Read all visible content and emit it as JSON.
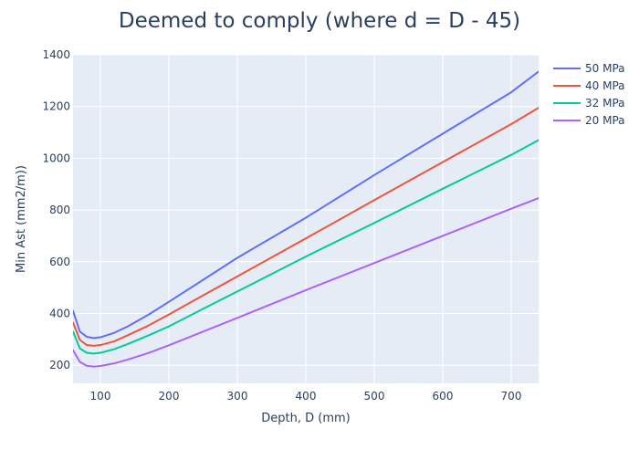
{
  "chart_data": {
    "type": "line",
    "title": "Deemed to comply (where d = D - 45)",
    "xlabel": "Depth, D (mm)",
    "ylabel": "Min Ast (mm2/m))",
    "xlim": [
      60,
      740
    ],
    "ylim": [
      130,
      1400
    ],
    "x_ticks": [
      100,
      200,
      300,
      400,
      500,
      600,
      700
    ],
    "y_ticks": [
      200,
      400,
      600,
      800,
      1000,
      1200,
      1400
    ],
    "grid": true,
    "legend_position": "top-right",
    "plot_background": "#e5ecf6",
    "x": [
      60,
      70,
      80,
      90,
      100,
      120,
      140,
      170,
      200,
      250,
      300,
      400,
      500,
      600,
      700,
      740
    ],
    "series": [
      {
        "name": "50 MPa",
        "color": "#636efa",
        "values": [
          410,
          330,
          310,
          305,
          308,
          325,
          350,
          395,
          445,
          530,
          615,
          770,
          935,
          1095,
          1255,
          1335
        ]
      },
      {
        "name": "40 MPa",
        "color": "#ef553b",
        "values": [
          365,
          298,
          278,
          275,
          278,
          292,
          316,
          353,
          396,
          470,
          543,
          690,
          838,
          985,
          1132,
          1195
        ]
      },
      {
        "name": "32 MPa",
        "color": "#00cc96",
        "values": [
          330,
          265,
          248,
          245,
          248,
          262,
          282,
          315,
          350,
          418,
          485,
          620,
          750,
          882,
          1013,
          1070
        ]
      },
      {
        "name": "20 MPa",
        "color": "#ab63fa",
        "values": [
          258,
          213,
          198,
          195,
          197,
          207,
          222,
          247,
          277,
          330,
          383,
          490,
          595,
          700,
          805,
          846
        ]
      }
    ]
  }
}
